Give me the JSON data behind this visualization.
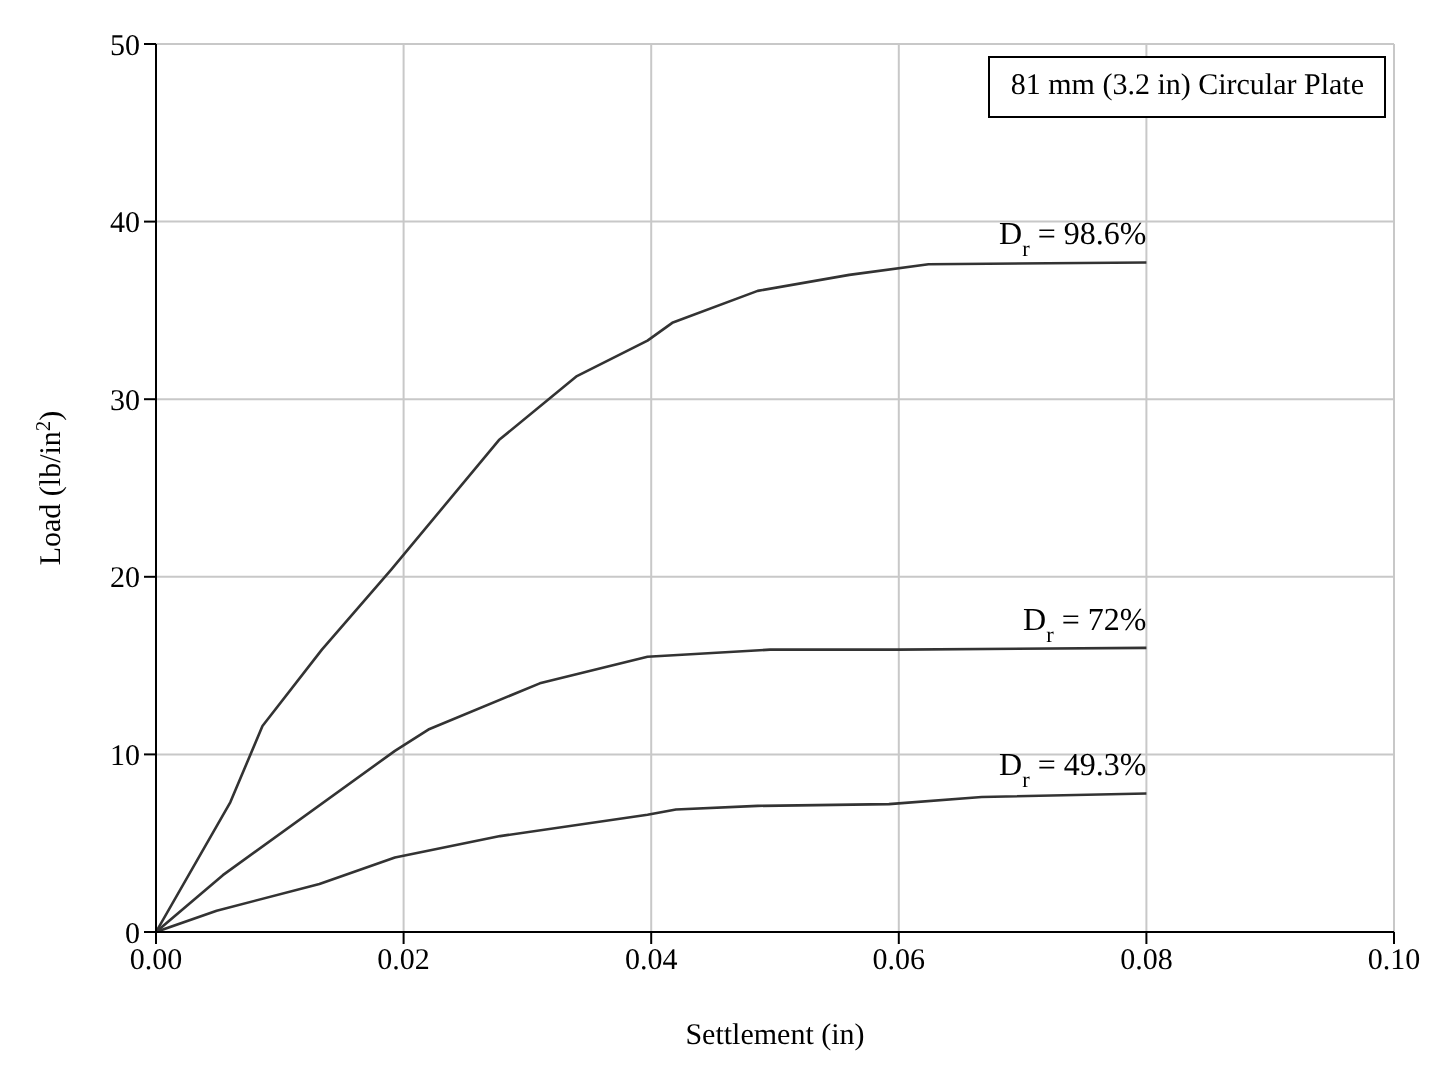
{
  "chart_data": {
    "type": "line",
    "xlabel": "Settlement (in)",
    "ylabel": "Load (lb/in$^{2}$)",
    "annotations": [
      "81 mm (3.2 in) Circular Plate"
    ],
    "xlim": [
      0,
      0.1
    ],
    "xticks": [
      {
        "value": 0,
        "label": "0.00"
      },
      {
        "value": 0.02,
        "label": "0.02"
      },
      {
        "value": 0.04,
        "label": "0.04"
      },
      {
        "value": 0.06,
        "label": "0.06"
      },
      {
        "value": 0.08,
        "label": "0.08"
      },
      {
        "value": 0.1,
        "label": "0.10"
      }
    ],
    "ylim": [
      0,
      50
    ],
    "yticks": [
      0,
      10,
      20,
      30,
      40,
      50
    ],
    "grid": true,
    "marker": "none",
    "line_style": "solid",
    "series": [
      {
        "name": "D$_{r}$ = 98.6%",
        "color": "#333333",
        "x": [
          0,
          0.006,
          0.0086,
          0.0134,
          0.019,
          0.0277,
          0.034,
          0.0397,
          0.0417,
          0.0486,
          0.056,
          0.0624,
          0.08
        ],
        "values": [
          0,
          7.3,
          11.6,
          15.9,
          20.4,
          27.7,
          31.3,
          33.3,
          34.3,
          36.1,
          37.0,
          37.6,
          37.7
        ]
      },
      {
        "name": "D$_{r}$ = 72%",
        "color": "#333333",
        "x": [
          0,
          0.0054,
          0.0193,
          0.022,
          0.031,
          0.0397,
          0.0496,
          0.06,
          0.08
        ],
        "values": [
          0,
          3.2,
          10.2,
          11.4,
          14.0,
          15.5,
          15.9,
          15.9,
          16.0
        ]
      },
      {
        "name": "D$_{r}$ = 49.3%",
        "color": "#333333",
        "x": [
          0,
          0.0049,
          0.0132,
          0.0193,
          0.0278,
          0.0397,
          0.042,
          0.0486,
          0.0592,
          0.0667,
          0.08
        ],
        "values": [
          0,
          1.2,
          2.7,
          4.2,
          5.4,
          6.6,
          6.9,
          7.1,
          7.2,
          7.6,
          7.8
        ]
      }
    ]
  }
}
